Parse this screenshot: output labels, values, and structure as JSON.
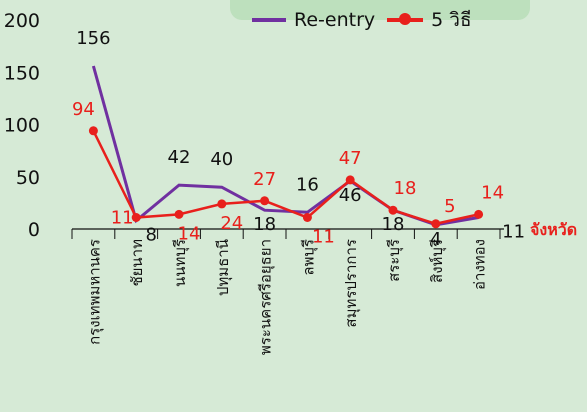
{
  "chart_data": {
    "type": "line",
    "categories": [
      "กรุงเทพมหานคร",
      "ชัยนาท",
      "นนทบุรี",
      "ปทุมธานี",
      "พระนครศรีอยุธยา",
      "ลพบุรี",
      "สมุทรปราการ",
      "สระบุรี",
      "สิงห์บุรี",
      "อ่างทอง"
    ],
    "xlabel": "จังหวัด",
    "ylabel": "",
    "ylim": [
      0,
      200
    ],
    "yticks": [
      "0",
      "50",
      "100",
      "150",
      "200"
    ],
    "grid": false,
    "legend_position": "top-right",
    "series": [
      {
        "name": "Re-entry",
        "color": "#7030a0",
        "values": [
          156,
          8,
          42,
          40,
          18,
          16,
          46,
          18,
          4,
          11
        ],
        "labels": [
          "156",
          "8",
          "42",
          "40",
          "18",
          "16",
          "46",
          "18",
          "4",
          "11"
        ]
      },
      {
        "name": "5 วิธี",
        "color": "#e8201c",
        "values": [
          94,
          11,
          14,
          24,
          27,
          11,
          47,
          18,
          5,
          14
        ],
        "labels": [
          "94",
          "11",
          "14",
          "24",
          "27",
          "11",
          "47",
          "18",
          "5",
          "14"
        ]
      }
    ]
  },
  "colors": {
    "background": "#d6ead6",
    "axis": "#111111",
    "tick_text": "#111111"
  }
}
